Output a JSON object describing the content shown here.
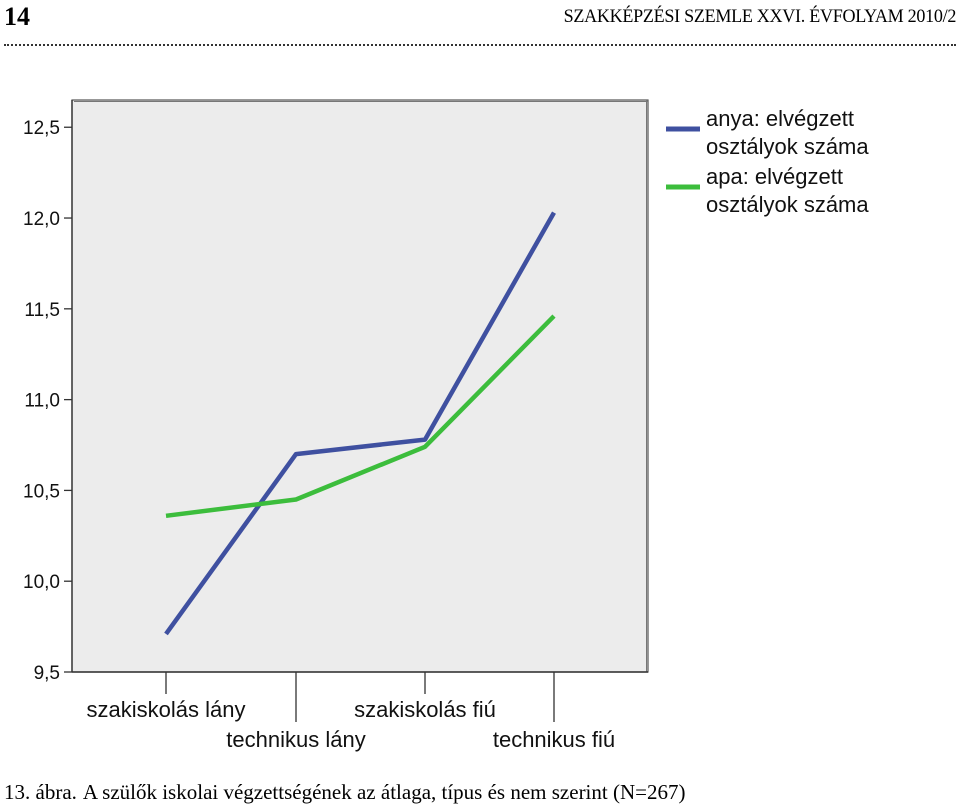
{
  "header": {
    "page_number": "14",
    "journal": "SZAKKÉPZÉSI SZEMLE XXVI. ÉVFOLYAM 2010/2"
  },
  "caption": {
    "label": "13. ábra.",
    "text": "A szülők iskolai végzettségének az átlaga, típus és nem szerint (N=267)"
  },
  "colors": {
    "plot_background": "#ececec",
    "series_1": "#3f50a0",
    "series_2": "#3cbd3c"
  },
  "chart_data": {
    "type": "line",
    "categories": [
      "szakiskolás lány",
      "technikus lány",
      "szakiskolás fiú",
      "technikus fiú"
    ],
    "ylim": [
      9.5,
      12.65
    ],
    "yticks": [
      "12,5",
      "12,0",
      "11,5",
      "11,0",
      "10,5",
      "10,0",
      "9,5"
    ],
    "ytick_values": [
      12.5,
      12.0,
      11.5,
      11.0,
      10.5,
      10.0,
      9.5
    ],
    "grid": false,
    "legend_position": "top-right",
    "series": [
      {
        "name": "anya: elvégzett osztályok száma",
        "name_lines": [
          "anya: elvégzett",
          "osztályok száma"
        ],
        "values": [
          9.71,
          10.7,
          10.78,
          12.03
        ]
      },
      {
        "name": "apa: elvégzett osztályok száma",
        "name_lines": [
          "apa: elvégzett",
          "osztályok száma"
        ],
        "values": [
          10.36,
          10.45,
          10.74,
          11.46
        ]
      }
    ]
  }
}
